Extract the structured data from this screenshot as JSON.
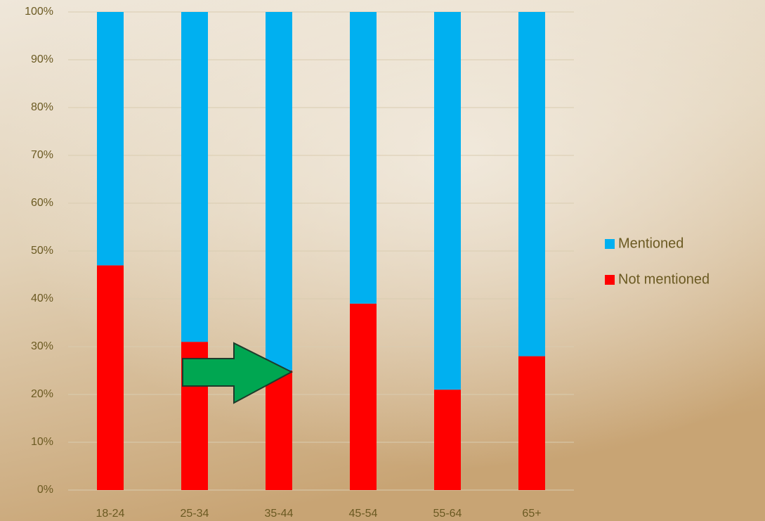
{
  "chart_data": {
    "type": "stacked_bar",
    "categories": [
      "18-24",
      "25-34",
      "35-44",
      "45-54",
      "55-64",
      "65+"
    ],
    "series": [
      {
        "name": "Not mentioned",
        "color": "#ff0000",
        "values": [
          47,
          31,
          25,
          39,
          21,
          28
        ]
      },
      {
        "name": "Mentioned",
        "color": "#00b0f0",
        "values": [
          53,
          69,
          75,
          61,
          79,
          72
        ]
      }
    ],
    "ylim": [
      0,
      100
    ],
    "yticks": [
      {
        "value": 0,
        "label": "0%"
      },
      {
        "value": 10,
        "label": "10%"
      },
      {
        "value": 20,
        "label": "20%"
      },
      {
        "value": 30,
        "label": "30%"
      },
      {
        "value": 40,
        "label": "40%"
      },
      {
        "value": 50,
        "label": "50%"
      },
      {
        "value": 60,
        "label": "60%"
      },
      {
        "value": 70,
        "label": "70%"
      },
      {
        "value": 80,
        "label": "80%"
      },
      {
        "value": 90,
        "label": "90%"
      },
      {
        "value": 100,
        "label": "100%"
      }
    ],
    "grid": true,
    "legend": "right"
  }
}
